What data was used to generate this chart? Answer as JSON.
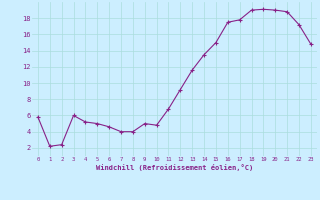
{
  "x": [
    0,
    1,
    2,
    3,
    4,
    5,
    6,
    7,
    8,
    9,
    10,
    11,
    12,
    13,
    14,
    15,
    16,
    17,
    18,
    19,
    20,
    21,
    22,
    23
  ],
  "y": [
    5.8,
    2.2,
    2.4,
    6.0,
    5.2,
    5.0,
    4.6,
    4.0,
    4.0,
    5.0,
    4.8,
    6.8,
    9.2,
    11.6,
    13.5,
    15.0,
    17.5,
    17.8,
    19.0,
    19.1,
    19.0,
    18.8,
    17.2,
    14.8
  ],
  "line_color": "#882288",
  "marker": "+",
  "bg_color": "#cceeff",
  "grid_color": "#aadddd",
  "xlabel": "Windchill (Refroidissement éolien,°C)",
  "xlabel_color": "#882288",
  "yticks": [
    2,
    4,
    6,
    8,
    10,
    12,
    14,
    16,
    18
  ],
  "xticks": [
    0,
    1,
    2,
    3,
    4,
    5,
    6,
    7,
    8,
    9,
    10,
    11,
    12,
    13,
    14,
    15,
    16,
    17,
    18,
    19,
    20,
    21,
    22,
    23
  ],
  "ylim": [
    1.0,
    20.0
  ],
  "xlim": [
    -0.5,
    23.5
  ]
}
